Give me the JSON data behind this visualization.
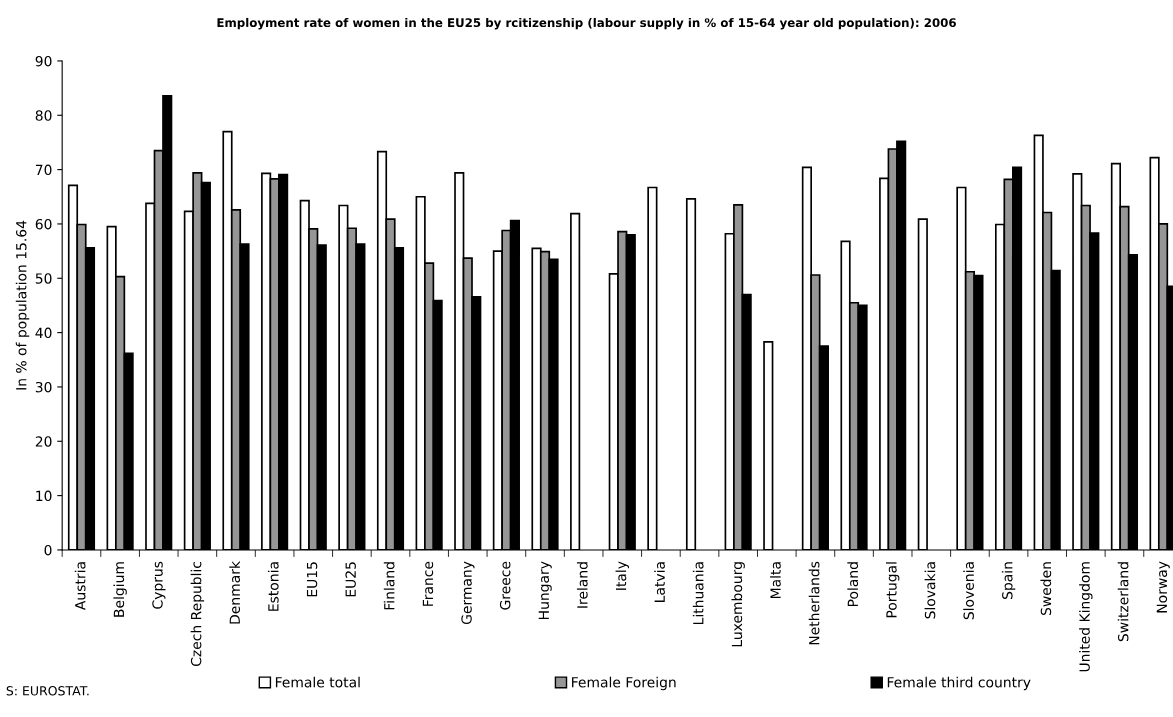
{
  "chart_data": {
    "type": "bar",
    "title": "Employment rate of women in the EU25 by rcitizenship (labour supply in % of 15-64 year old population): 2006",
    "ylabel": "In % of population 15.64",
    "categories": [
      "Austria",
      "Belgium",
      "Cyprus",
      "Czech Republic",
      "Denmark",
      "Estonia",
      "EU15",
      "EU25",
      "Finland",
      "France",
      "Germany",
      "Greece",
      "Hungary",
      "Ireland",
      "Italy",
      "Latvia",
      "Lithuania",
      "Luxembourg",
      "Malta",
      "Netherlands",
      "Poland",
      "Portugal",
      "Slovakia",
      "Slovenia",
      "Spain",
      "Sweden",
      "United Kingdom",
      "Switzerland",
      "Norway"
    ],
    "series": [
      {
        "name": "Female total",
        "color": "#ffffff",
        "values": [
          67.1,
          59.5,
          63.8,
          62.3,
          77.0,
          69.3,
          64.3,
          63.4,
          73.3,
          65.0,
          69.4,
          55.0,
          55.5,
          61.9,
          50.8,
          66.7,
          64.6,
          58.2,
          38.3,
          70.4,
          56.8,
          68.4,
          60.9,
          66.7,
          59.9,
          76.3,
          69.2,
          71.1,
          72.2
        ]
      },
      {
        "name": "Female Foreign",
        "color": "#969696",
        "values": [
          59.9,
          50.3,
          73.5,
          69.4,
          62.6,
          68.3,
          59.1,
          59.2,
          60.9,
          52.8,
          53.7,
          58.8,
          54.9,
          null,
          58.6,
          null,
          null,
          63.5,
          null,
          50.6,
          45.5,
          73.8,
          null,
          51.2,
          68.2,
          62.1,
          63.4,
          63.2,
          60.0
        ]
      },
      {
        "name": "Female third country",
        "color": "#000000",
        "values": [
          55.6,
          36.2,
          83.6,
          67.6,
          56.3,
          69.1,
          56.1,
          56.3,
          55.6,
          45.9,
          46.6,
          60.6,
          53.5,
          null,
          58.0,
          null,
          null,
          47.0,
          null,
          37.5,
          45.0,
          75.2,
          null,
          50.5,
          70.4,
          51.4,
          58.3,
          54.3,
          48.5
        ]
      }
    ],
    "ylim": [
      0,
      90
    ],
    "yticks": [
      0,
      10,
      20,
      30,
      40,
      50,
      60,
      70,
      80,
      90
    ],
    "grid": false,
    "legend": "bottom",
    "annotations": [
      "S: EUROSTAT."
    ]
  }
}
